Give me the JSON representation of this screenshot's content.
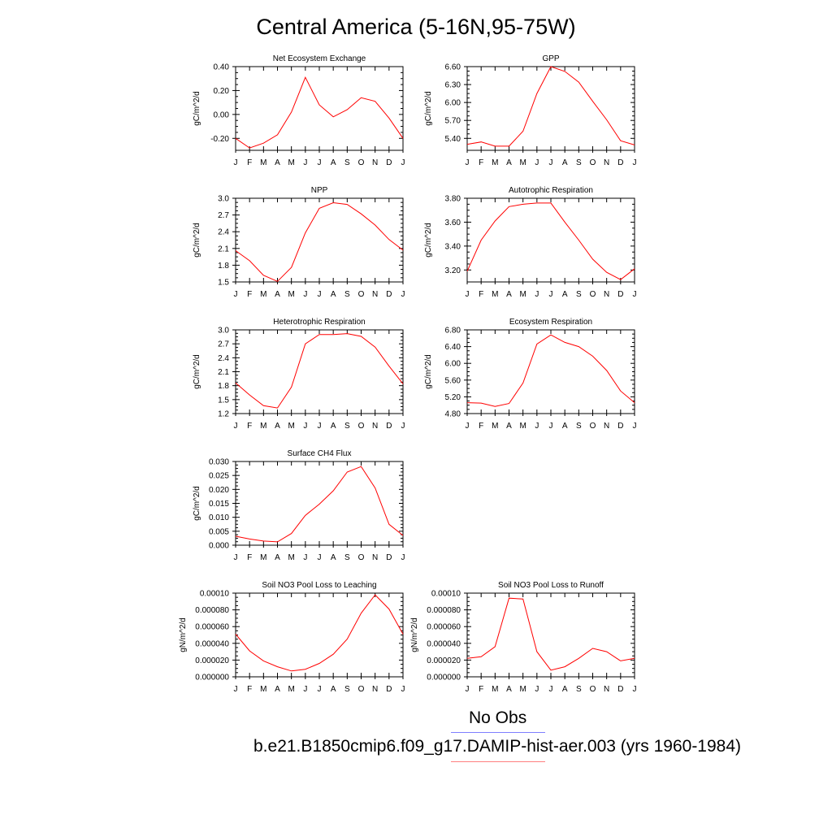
{
  "title": "Central America (5-16N,95-75W)",
  "legend": [
    {
      "label": "No Obs",
      "color": "#7f7fff"
    },
    {
      "label": "b.e21.B1850cmip6.f09_g17.DAMIP-hist-aer.003 (yrs 1960-1984)",
      "color": "#ff7f7f"
    }
  ],
  "chart_data": [
    {
      "type": "line",
      "title": "Net Ecosystem Exchange",
      "ylabel": "gC/m^2/d",
      "categories": [
        "J",
        "F",
        "M",
        "A",
        "M",
        "J",
        "J",
        "A",
        "S",
        "O",
        "N",
        "D",
        "J"
      ],
      "ylim": [
        -0.3,
        0.4
      ],
      "yticks": [
        "0.40",
        "0.20",
        "0.00",
        "-0.20"
      ],
      "ytick_values": [
        0.4,
        0.2,
        0.0,
        -0.2
      ],
      "line_color": "#ff0000",
      "values": [
        -0.2,
        -0.28,
        -0.24,
        -0.17,
        0.02,
        0.31,
        0.08,
        -0.02,
        0.04,
        0.14,
        0.11,
        -0.03,
        -0.2
      ]
    },
    {
      "type": "line",
      "title": "GPP",
      "ylabel": "gC/m^2/d",
      "categories": [
        "J",
        "F",
        "M",
        "A",
        "M",
        "J",
        "J",
        "A",
        "S",
        "O",
        "N",
        "D",
        "J"
      ],
      "ylim": [
        5.2,
        6.6
      ],
      "yticks": [
        "6.60",
        "6.30",
        "6.00",
        "5.70",
        "5.40"
      ],
      "ytick_values": [
        6.6,
        6.3,
        6.0,
        5.7,
        5.4
      ],
      "line_color": "#ff0000",
      "values": [
        5.3,
        5.34,
        5.27,
        5.27,
        5.52,
        6.15,
        6.6,
        6.52,
        6.34,
        6.02,
        5.71,
        5.36,
        5.29
      ]
    },
    {
      "type": "line",
      "title": "NPP",
      "ylabel": "gC/m^2/d",
      "categories": [
        "J",
        "F",
        "M",
        "A",
        "M",
        "J",
        "J",
        "A",
        "S",
        "O",
        "N",
        "D",
        "J"
      ],
      "ylim": [
        1.5,
        3.0
      ],
      "yticks": [
        "3.0",
        "2.7",
        "2.4",
        "2.1",
        "1.8",
        "1.5"
      ],
      "ytick_values": [
        3.0,
        2.7,
        2.4,
        2.1,
        1.8,
        1.5
      ],
      "line_color": "#ff0000",
      "values": [
        2.06,
        1.88,
        1.62,
        1.51,
        1.76,
        2.38,
        2.82,
        2.92,
        2.89,
        2.72,
        2.52,
        2.26,
        2.07
      ]
    },
    {
      "type": "line",
      "title": "Autotrophic Respiration",
      "ylabel": "gC/m^2/d",
      "categories": [
        "J",
        "F",
        "M",
        "A",
        "M",
        "J",
        "J",
        "A",
        "S",
        "O",
        "N",
        "D",
        "J"
      ],
      "ylim": [
        3.1,
        3.8
      ],
      "yticks": [
        "3.80",
        "3.60",
        "3.40",
        "3.20"
      ],
      "ytick_values": [
        3.8,
        3.6,
        3.4,
        3.2
      ],
      "line_color": "#ff0000",
      "values": [
        3.19,
        3.45,
        3.61,
        3.73,
        3.75,
        3.76,
        3.76,
        3.6,
        3.45,
        3.29,
        3.18,
        3.12,
        3.21
      ]
    },
    {
      "type": "line",
      "title": "Heterotrophic Respiration",
      "ylabel": "gC/m^2/d",
      "categories": [
        "J",
        "F",
        "M",
        "A",
        "M",
        "J",
        "J",
        "A",
        "S",
        "O",
        "N",
        "D",
        "J"
      ],
      "ylim": [
        1.2,
        3.0
      ],
      "yticks": [
        "3.0",
        "2.7",
        "2.4",
        "2.1",
        "1.8",
        "1.5",
        "1.2"
      ],
      "ytick_values": [
        3.0,
        2.7,
        2.4,
        2.1,
        1.8,
        1.5,
        1.2
      ],
      "line_color": "#ff0000",
      "values": [
        1.86,
        1.6,
        1.37,
        1.32,
        1.77,
        2.7,
        2.9,
        2.9,
        2.92,
        2.86,
        2.63,
        2.22,
        1.84
      ]
    },
    {
      "type": "line",
      "title": "Ecosystem Respiration",
      "ylabel": "gC/m^2/d",
      "categories": [
        "J",
        "F",
        "M",
        "A",
        "M",
        "J",
        "J",
        "A",
        "S",
        "O",
        "N",
        "D",
        "J"
      ],
      "ylim": [
        4.8,
        6.8
      ],
      "yticks": [
        "6.80",
        "6.40",
        "6.00",
        "5.60",
        "5.20",
        "4.80"
      ],
      "ytick_values": [
        6.8,
        6.4,
        6.0,
        5.6,
        5.2,
        4.8
      ],
      "line_color": "#ff0000",
      "values": [
        5.06,
        5.05,
        4.97,
        5.04,
        5.53,
        6.46,
        6.68,
        6.5,
        6.4,
        6.17,
        5.83,
        5.34,
        5.06
      ]
    },
    {
      "type": "line",
      "title": "Surface CH4 Flux",
      "ylabel": "gC/m^2/d",
      "categories": [
        "J",
        "F",
        "M",
        "A",
        "M",
        "J",
        "J",
        "A",
        "S",
        "O",
        "N",
        "D",
        "J"
      ],
      "ylim": [
        0.0,
        0.03
      ],
      "yticks": [
        "0.030",
        "0.025",
        "0.020",
        "0.015",
        "0.010",
        "0.005",
        "0.000"
      ],
      "ytick_values": [
        0.03,
        0.025,
        0.02,
        0.015,
        0.01,
        0.005,
        0.0
      ],
      "line_color": "#ff0000",
      "values": [
        0.0032,
        0.0022,
        0.0015,
        0.0012,
        0.0042,
        0.0107,
        0.0147,
        0.0195,
        0.0262,
        0.0282,
        0.0205,
        0.0075,
        0.0035
      ]
    },
    {
      "type": "line",
      "title": "Soil NO3 Pool Loss to Leaching",
      "ylabel": "gN/m^2/d",
      "categories": [
        "J",
        "F",
        "M",
        "A",
        "M",
        "J",
        "J",
        "A",
        "S",
        "O",
        "N",
        "D",
        "J"
      ],
      "ylim": [
        0.0,
        0.0001
      ],
      "yticks": [
        "0.00010",
        "0.000080",
        "0.000060",
        "0.000040",
        "0.000020",
        "0.000000"
      ],
      "ytick_values": [
        0.0001,
        8e-05,
        6e-05,
        4e-05,
        2e-05,
        0.0
      ],
      "line_color": "#ff0000",
      "values": [
        5.1e-05,
        3.1e-05,
        1.9e-05,
        1.2e-05,
        7e-06,
        9e-06,
        1.6e-05,
        2.7e-05,
        4.5e-05,
        7.6e-05,
        9.8e-05,
        8.1e-05,
        5.1e-05
      ]
    },
    {
      "type": "line",
      "title": "Soil NO3 Pool Loss to Runoff",
      "ylabel": "gN/m^2/d",
      "categories": [
        "J",
        "F",
        "M",
        "A",
        "M",
        "J",
        "J",
        "A",
        "S",
        "O",
        "N",
        "D",
        "J"
      ],
      "ylim": [
        0.0,
        0.0001
      ],
      "yticks": [
        "0.00010",
        "0.000080",
        "0.000060",
        "0.000040",
        "0.000020",
        "0.000000"
      ],
      "ytick_values": [
        0.0001,
        8e-05,
        6e-05,
        4e-05,
        2e-05,
        0.0
      ],
      "line_color": "#ff0000",
      "values": [
        2.2e-05,
        2.4e-05,
        3.6e-05,
        9.4e-05,
        9.3e-05,
        3e-05,
        8e-06,
        1.2e-05,
        2.2e-05,
        3.4e-05,
        3e-05,
        1.9e-05,
        2.2e-05
      ]
    }
  ]
}
